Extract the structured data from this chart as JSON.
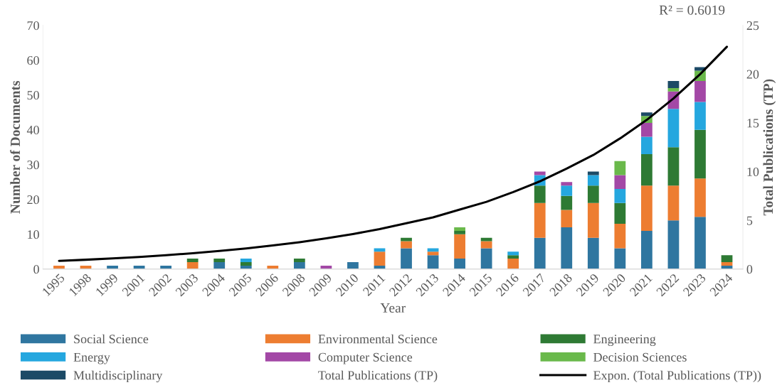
{
  "chart_data": {
    "type": "bar",
    "stacked": true,
    "xlabel": "Year",
    "ylabel": "Number of Documents",
    "y2label": "Total Publications (TP)",
    "categories": [
      "1995",
      "1998",
      "1999",
      "2001",
      "2002",
      "2003",
      "2004",
      "2005",
      "2006",
      "2008",
      "2009",
      "2010",
      "2011",
      "2012",
      "2013",
      "2014",
      "2015",
      "2016",
      "2017",
      "2018",
      "2019",
      "2020",
      "2021",
      "2022",
      "2023",
      "2024"
    ],
    "series": [
      {
        "name": "Social Science",
        "color": "#2f76a0",
        "values": [
          0,
          0,
          1,
          1,
          1,
          0,
          2,
          1,
          0,
          2,
          0,
          2,
          1,
          6,
          4,
          3,
          6,
          0,
          9,
          12,
          9,
          6,
          11,
          14,
          15,
          1
        ]
      },
      {
        "name": "Environmental Science",
        "color": "#ed7d31",
        "values": [
          1,
          1,
          0,
          0,
          0,
          2,
          0,
          0,
          1,
          0,
          0,
          0,
          4,
          2,
          1,
          7,
          2,
          3,
          10,
          5,
          10,
          7,
          13,
          10,
          11,
          1
        ]
      },
      {
        "name": "Engineering",
        "color": "#2e7a34",
        "values": [
          0,
          0,
          0,
          0,
          0,
          1,
          1,
          1,
          0,
          1,
          0,
          0,
          0,
          1,
          0,
          1,
          1,
          1,
          5,
          4,
          5,
          6,
          9,
          11,
          14,
          2
        ]
      },
      {
        "name": "Energy",
        "color": "#25a7df",
        "values": [
          0,
          0,
          0,
          0,
          0,
          0,
          0,
          1,
          0,
          0,
          0,
          0,
          1,
          0,
          1,
          0,
          0,
          1,
          3,
          3,
          3,
          4,
          5,
          11,
          8,
          0
        ]
      },
      {
        "name": "Computer Science",
        "color": "#a348a6",
        "values": [
          0,
          0,
          0,
          0,
          0,
          0,
          0,
          0,
          0,
          0,
          1,
          0,
          0,
          0,
          0,
          0,
          0,
          0,
          1,
          1,
          0,
          4,
          4,
          5,
          6,
          0
        ]
      },
      {
        "name": "Decision Sciences",
        "color": "#6ab94b",
        "values": [
          0,
          0,
          0,
          0,
          0,
          0,
          0,
          0,
          0,
          0,
          0,
          0,
          0,
          0,
          0,
          1,
          0,
          0,
          0,
          0,
          0,
          4,
          2,
          1,
          3,
          0
        ]
      },
      {
        "name": "Multidisciplinary",
        "color": "#1c4a66",
        "values": [
          0,
          0,
          0,
          0,
          0,
          0,
          0,
          0,
          0,
          0,
          0,
          0,
          0,
          0,
          0,
          0,
          0,
          0,
          0,
          0,
          1,
          0,
          1,
          2,
          1,
          0
        ]
      },
      {
        "name": "Total Publications (TP)",
        "type": "line",
        "axis": "y2",
        "values": [
          null,
          null,
          null,
          null,
          null,
          null,
          null,
          null,
          null,
          null,
          null,
          null,
          null,
          null,
          null,
          null,
          null,
          null,
          null,
          null,
          null,
          null,
          null,
          null,
          null,
          null
        ]
      },
      {
        "name": "Expon. (Total Publications (TP))",
        "type": "line",
        "axis": "y2",
        "color": "#000000",
        "values": [
          0.84,
          0.96,
          1.1,
          1.25,
          1.42,
          1.63,
          1.86,
          2.12,
          2.42,
          2.76,
          3.15,
          3.6,
          4.1,
          4.7,
          5.3,
          6.1,
          6.9,
          7.9,
          9.0,
          10.3,
          11.7,
          13.4,
          15.3,
          17.5,
          20.0,
          22.8
        ]
      }
    ],
    "ylim": [
      0,
      70
    ],
    "yticks": [
      0,
      10,
      20,
      30,
      40,
      50,
      60,
      70
    ],
    "y2lim": [
      0,
      25
    ],
    "y2ticks": [
      0,
      5,
      10,
      15,
      20,
      25
    ],
    "annotations": [
      "R² = 0.6019"
    ],
    "legend": "bottom",
    "grid": false
  }
}
